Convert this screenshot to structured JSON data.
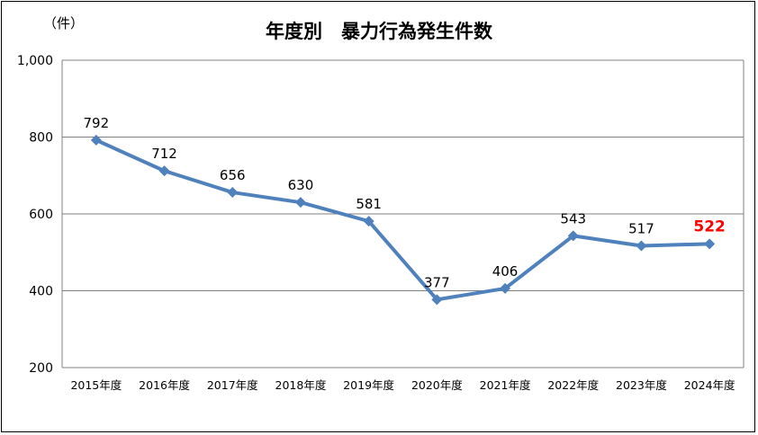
{
  "chart_data": {
    "type": "line",
    "title": "年度別　暴力行為発生件数",
    "unit_label": "（件）",
    "categories": [
      "2015年度",
      "2016年度",
      "2017年度",
      "2018年度",
      "2019年度",
      "2020年度",
      "2021年度",
      "2022年度",
      "2023年度",
      "2024年度"
    ],
    "series": [
      {
        "values": [
          792,
          712,
          656,
          630,
          581,
          377,
          406,
          543,
          517,
          522
        ]
      }
    ],
    "data_labels": [
      "792",
      "712",
      "656",
      "630",
      "581",
      "377",
      "406",
      "543",
      "517",
      "522"
    ],
    "ylim": [
      200,
      1000
    ],
    "yticks": [
      200,
      400,
      600,
      800,
      1000
    ],
    "ytick_labels": [
      "200",
      "400",
      "600",
      "800",
      "1,000"
    ],
    "grid": true,
    "legend": "none",
    "colors": {
      "line": "#4F81BD",
      "marker": "#4F81BD",
      "highlight_label": "#FF0000",
      "grid": "#808080"
    },
    "highlight_index": 9
  }
}
